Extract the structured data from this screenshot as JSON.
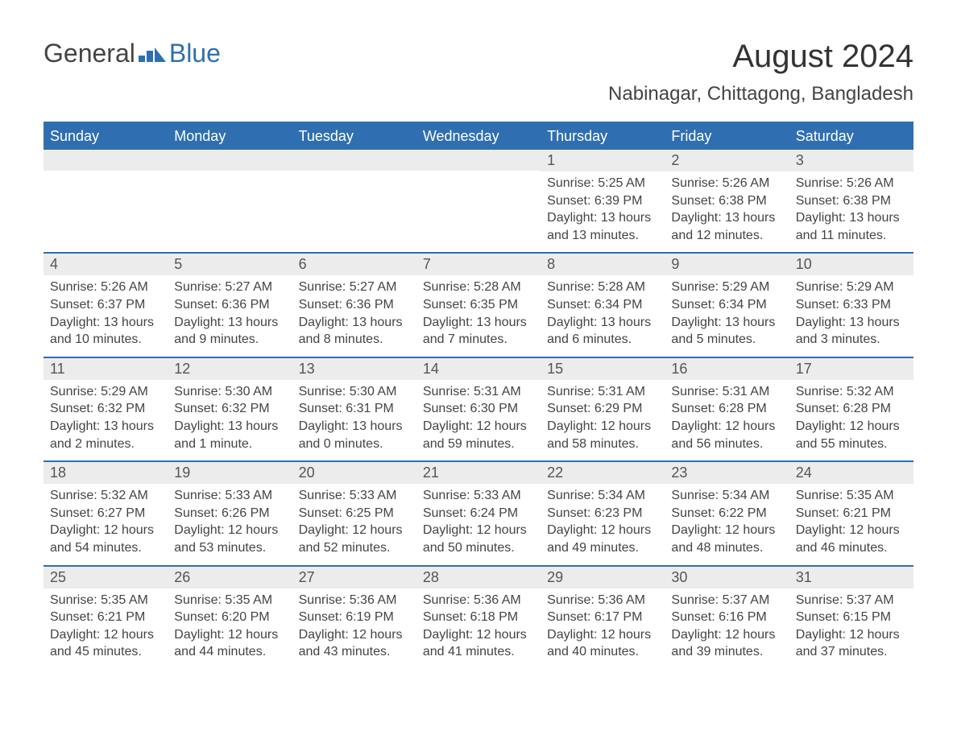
{
  "logo": {
    "text1": "General",
    "text2": "Blue",
    "brand_color": "#2f6fb1"
  },
  "title": "August 2024",
  "location": "Nabinagar, Chittagong, Bangladesh",
  "colors": {
    "header_bg": "#2f6fb1",
    "header_text": "#ffffff",
    "daynum_bg": "#ececec",
    "divider": "#2f6fb1",
    "body_bg": "#ffffff",
    "text": "#444444"
  },
  "weekdays": [
    "Sunday",
    "Monday",
    "Tuesday",
    "Wednesday",
    "Thursday",
    "Friday",
    "Saturday"
  ],
  "weeks": [
    [
      null,
      null,
      null,
      null,
      {
        "n": "1",
        "sr": "5:25 AM",
        "ss": "6:39 PM",
        "dh": "13",
        "dm": "13"
      },
      {
        "n": "2",
        "sr": "5:26 AM",
        "ss": "6:38 PM",
        "dh": "13",
        "dm": "12"
      },
      {
        "n": "3",
        "sr": "5:26 AM",
        "ss": "6:38 PM",
        "dh": "13",
        "dm": "11"
      }
    ],
    [
      {
        "n": "4",
        "sr": "5:26 AM",
        "ss": "6:37 PM",
        "dh": "13",
        "dm": "10"
      },
      {
        "n": "5",
        "sr": "5:27 AM",
        "ss": "6:36 PM",
        "dh": "13",
        "dm": "9"
      },
      {
        "n": "6",
        "sr": "5:27 AM",
        "ss": "6:36 PM",
        "dh": "13",
        "dm": "8"
      },
      {
        "n": "7",
        "sr": "5:28 AM",
        "ss": "6:35 PM",
        "dh": "13",
        "dm": "7"
      },
      {
        "n": "8",
        "sr": "5:28 AM",
        "ss": "6:34 PM",
        "dh": "13",
        "dm": "6"
      },
      {
        "n": "9",
        "sr": "5:29 AM",
        "ss": "6:34 PM",
        "dh": "13",
        "dm": "5"
      },
      {
        "n": "10",
        "sr": "5:29 AM",
        "ss": "6:33 PM",
        "dh": "13",
        "dm": "3"
      }
    ],
    [
      {
        "n": "11",
        "sr": "5:29 AM",
        "ss": "6:32 PM",
        "dh": "13",
        "dm": "2"
      },
      {
        "n": "12",
        "sr": "5:30 AM",
        "ss": "6:32 PM",
        "dh": "13",
        "dm": "1"
      },
      {
        "n": "13",
        "sr": "5:30 AM",
        "ss": "6:31 PM",
        "dh": "13",
        "dm": "0"
      },
      {
        "n": "14",
        "sr": "5:31 AM",
        "ss": "6:30 PM",
        "dh": "12",
        "dm": "59"
      },
      {
        "n": "15",
        "sr": "5:31 AM",
        "ss": "6:29 PM",
        "dh": "12",
        "dm": "58"
      },
      {
        "n": "16",
        "sr": "5:31 AM",
        "ss": "6:28 PM",
        "dh": "12",
        "dm": "56"
      },
      {
        "n": "17",
        "sr": "5:32 AM",
        "ss": "6:28 PM",
        "dh": "12",
        "dm": "55"
      }
    ],
    [
      {
        "n": "18",
        "sr": "5:32 AM",
        "ss": "6:27 PM",
        "dh": "12",
        "dm": "54"
      },
      {
        "n": "19",
        "sr": "5:33 AM",
        "ss": "6:26 PM",
        "dh": "12",
        "dm": "53"
      },
      {
        "n": "20",
        "sr": "5:33 AM",
        "ss": "6:25 PM",
        "dh": "12",
        "dm": "52"
      },
      {
        "n": "21",
        "sr": "5:33 AM",
        "ss": "6:24 PM",
        "dh": "12",
        "dm": "50"
      },
      {
        "n": "22",
        "sr": "5:34 AM",
        "ss": "6:23 PM",
        "dh": "12",
        "dm": "49"
      },
      {
        "n": "23",
        "sr": "5:34 AM",
        "ss": "6:22 PM",
        "dh": "12",
        "dm": "48"
      },
      {
        "n": "24",
        "sr": "5:35 AM",
        "ss": "6:21 PM",
        "dh": "12",
        "dm": "46"
      }
    ],
    [
      {
        "n": "25",
        "sr": "5:35 AM",
        "ss": "6:21 PM",
        "dh": "12",
        "dm": "45"
      },
      {
        "n": "26",
        "sr": "5:35 AM",
        "ss": "6:20 PM",
        "dh": "12",
        "dm": "44"
      },
      {
        "n": "27",
        "sr": "5:36 AM",
        "ss": "6:19 PM",
        "dh": "12",
        "dm": "43"
      },
      {
        "n": "28",
        "sr": "5:36 AM",
        "ss": "6:18 PM",
        "dh": "12",
        "dm": "41"
      },
      {
        "n": "29",
        "sr": "5:36 AM",
        "ss": "6:17 PM",
        "dh": "12",
        "dm": "40"
      },
      {
        "n": "30",
        "sr": "5:37 AM",
        "ss": "6:16 PM",
        "dh": "12",
        "dm": "39"
      },
      {
        "n": "31",
        "sr": "5:37 AM",
        "ss": "6:15 PM",
        "dh": "12",
        "dm": "37"
      }
    ]
  ],
  "labels": {
    "sunrise": "Sunrise: ",
    "sunset": "Sunset: ",
    "daylight1": "Daylight: ",
    "daylight2": " hours and ",
    "daylight3": " minutes.",
    "daylight3_sing": " minute."
  }
}
